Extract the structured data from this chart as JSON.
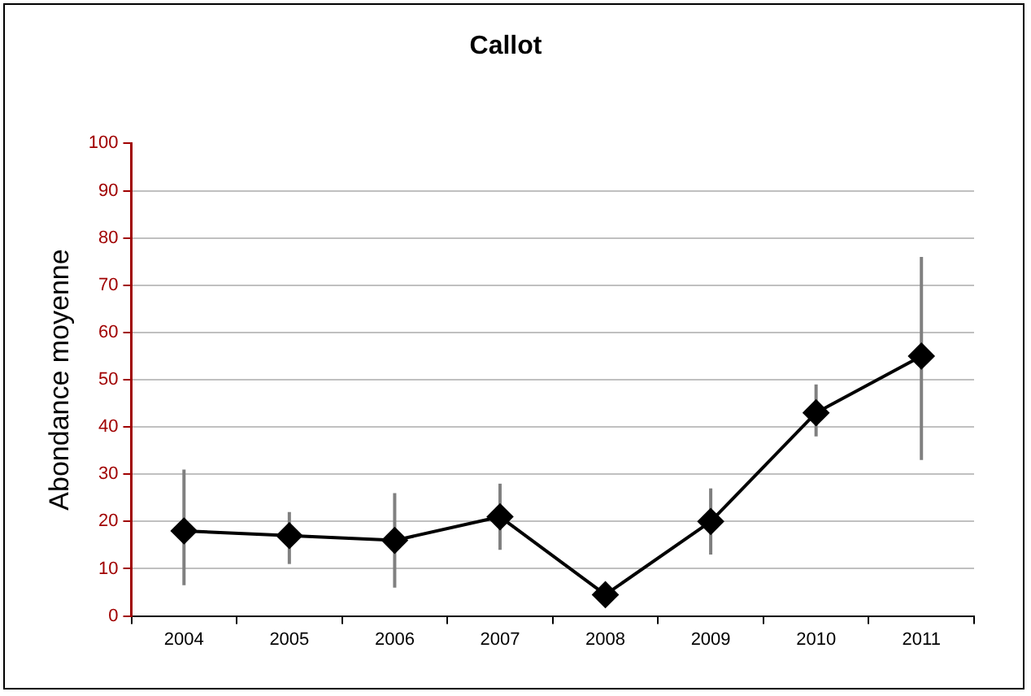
{
  "chart_data": {
    "type": "line",
    "title": "Callot",
    "ylabel": "Abondance moyenne",
    "categories": [
      "2004",
      "2005",
      "2006",
      "2007",
      "2008",
      "2009",
      "2010",
      "2011"
    ],
    "series": [
      {
        "color": "#000000",
        "values": [
          18,
          17,
          16,
          21,
          4.5,
          20,
          43,
          55
        ],
        "errors": [
          [
            6.5,
            31
          ],
          [
            11,
            22
          ],
          [
            6,
            26
          ],
          [
            14,
            28
          ],
          null,
          [
            13,
            27
          ],
          [
            38,
            49
          ],
          [
            33,
            76
          ]
        ]
      }
    ],
    "ylim": [
      0,
      100
    ],
    "yticks": [
      0,
      10,
      20,
      30,
      40,
      50,
      60,
      70,
      80,
      90,
      100
    ],
    "grid": "y",
    "legend": false,
    "marker": "diamond",
    "line_style": "solid"
  }
}
